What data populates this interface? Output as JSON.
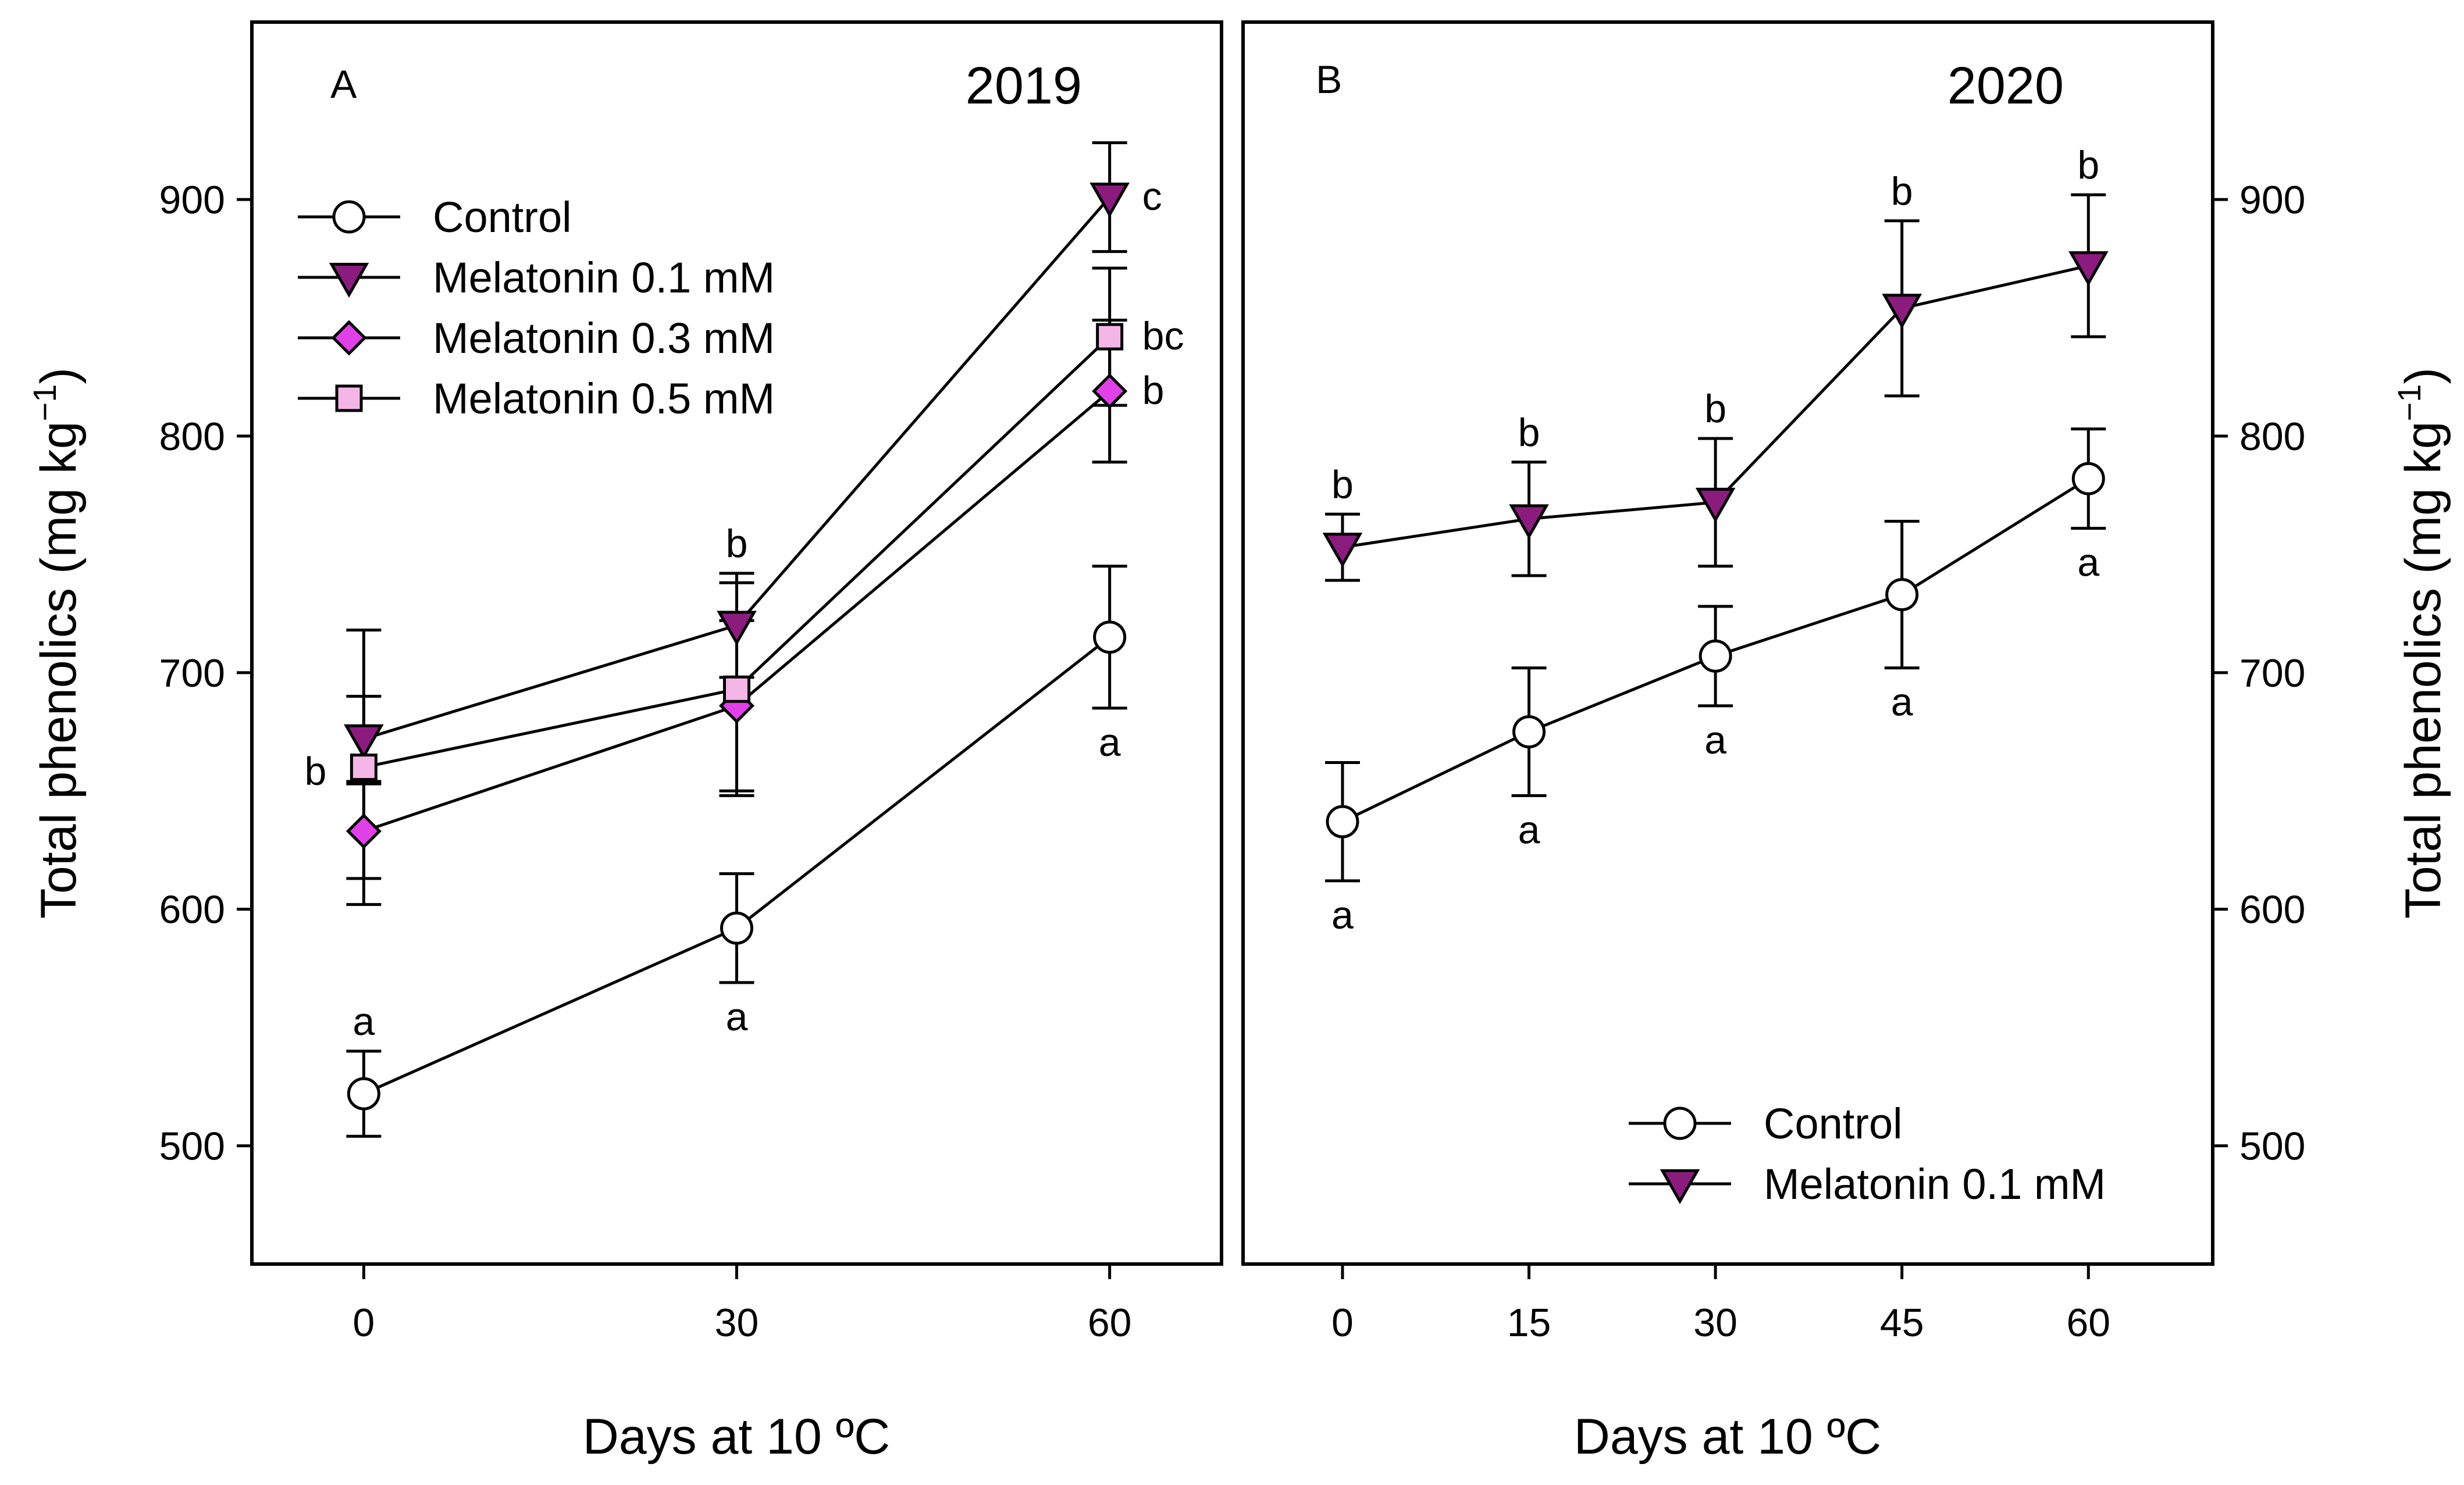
{
  "figure": {
    "xlabel": "Days at 10 ºC",
    "ylabel": "Total phenolics (mg kg",
    "ylabel_sup": "−1",
    "ylabel_close": ")"
  },
  "colors": {
    "control": "#ffffff",
    "melatonin_0_1": "#8b1c7e",
    "melatonin_0_3": "#e040e8",
    "melatonin_0_5": "#f4b6e6",
    "stroke": "#000000"
  },
  "chart_data": [
    {
      "type": "line",
      "panel": "A",
      "title": "2019",
      "x_ticks": [
        0,
        30,
        60
      ],
      "x_tick_labels": [
        "0",
        "30",
        "60"
      ],
      "xlim": [
        -9,
        69
      ],
      "ylim": [
        450,
        975
      ],
      "y_ticks": [
        500,
        600,
        700,
        800,
        900
      ],
      "y_tick_labels": [
        "500",
        "600",
        "700",
        "800",
        "900"
      ],
      "y_axis_side": "left",
      "legend_position": "top-left",
      "series": [
        {
          "name": "Control",
          "marker": "circle",
          "color_key": "control",
          "x": [
            0,
            30,
            60
          ],
          "values": [
            522,
            592,
            715
          ],
          "errors": [
            18,
            23,
            30
          ],
          "labels": [
            "a",
            "a",
            "a"
          ],
          "label_pos": [
            "above",
            "below",
            "below"
          ]
        },
        {
          "name": "Melatonin 0.1 mM",
          "marker": "triangle-down",
          "color_key": "melatonin_0_1",
          "x": [
            0,
            30,
            60
          ],
          "values": [
            672,
            720,
            901
          ],
          "errors": [
            18,
            22,
            23
          ],
          "labels": [
            "",
            "b",
            "c"
          ],
          "label_pos": [
            "",
            "above",
            "right"
          ]
        },
        {
          "name": "Melatonin 0.3 mM",
          "marker": "diamond",
          "color_key": "melatonin_0_3",
          "x": [
            0,
            30,
            60
          ],
          "values": [
            633,
            686,
            819
          ],
          "errors": [
            20,
            36,
            30
          ],
          "labels": [
            "",
            "",
            "b"
          ],
          "label_pos": [
            "",
            "",
            "right"
          ]
        },
        {
          "name": "Melatonin 0.5 mM",
          "marker": "square",
          "color_key": "melatonin_0_5",
          "x": [
            0,
            30,
            60
          ],
          "values": [
            660,
            693,
            842
          ],
          "errors": [
            58,
            45,
            29
          ],
          "labels": [
            "b",
            "",
            "bc"
          ],
          "label_pos": [
            "left",
            "",
            "right"
          ]
        }
      ]
    },
    {
      "type": "line",
      "panel": "B",
      "title": "2020",
      "x_ticks": [
        0,
        15,
        30,
        45,
        60
      ],
      "x_tick_labels": [
        "0",
        "15",
        "30",
        "45",
        "60"
      ],
      "xlim": [
        -8,
        70
      ],
      "ylim": [
        450,
        975
      ],
      "y_ticks": [
        500,
        600,
        700,
        800,
        900
      ],
      "y_tick_labels": [
        "500",
        "600",
        "700",
        "800",
        "900"
      ],
      "y_axis_side": "right",
      "legend_position": "bottom-right",
      "series": [
        {
          "name": "Control",
          "marker": "circle",
          "color_key": "control",
          "x": [
            0,
            15,
            30,
            45,
            60
          ],
          "values": [
            637,
            675,
            707,
            733,
            782
          ],
          "errors": [
            25,
            27,
            21,
            31,
            21
          ],
          "labels": [
            "a",
            "a",
            "a",
            "a",
            "a"
          ],
          "label_pos": [
            "below",
            "below",
            "below",
            "below",
            "below"
          ]
        },
        {
          "name": "Melatonin 0.1 mM",
          "marker": "triangle-down",
          "color_key": "melatonin_0_1",
          "x": [
            0,
            15,
            30,
            45,
            60
          ],
          "values": [
            753,
            765,
            772,
            854,
            872
          ],
          "errors": [
            14,
            24,
            27,
            37,
            30
          ],
          "labels": [
            "b",
            "b",
            "b",
            "b",
            "b"
          ],
          "label_pos": [
            "above",
            "above",
            "above",
            "above",
            "above"
          ]
        }
      ]
    }
  ]
}
